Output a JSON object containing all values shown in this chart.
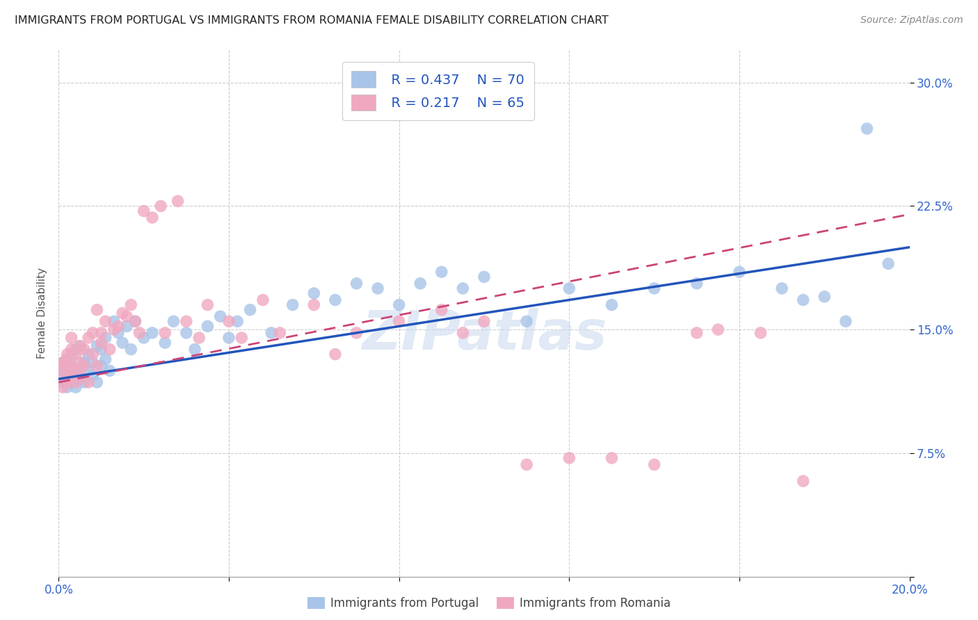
{
  "title": "IMMIGRANTS FROM PORTUGAL VS IMMIGRANTS FROM ROMANIA FEMALE DISABILITY CORRELATION CHART",
  "source": "Source: ZipAtlas.com",
  "ylabel": "Female Disability",
  "xlim": [
    0.0,
    0.2
  ],
  "ylim": [
    0.0,
    0.32
  ],
  "xticks": [
    0.0,
    0.04,
    0.08,
    0.12,
    0.16,
    0.2
  ],
  "xticklabels": [
    "0.0%",
    "",
    "",
    "",
    "",
    "20.0%"
  ],
  "yticks": [
    0.0,
    0.075,
    0.15,
    0.225,
    0.3
  ],
  "yticklabels": [
    "",
    "7.5%",
    "15.0%",
    "22.5%",
    "30.0%"
  ],
  "legend_r1": "R = 0.437",
  "legend_n1": "N = 70",
  "legend_r2": "R = 0.217",
  "legend_n2": "N = 65",
  "color_portugal": "#a8c4e8",
  "color_romania": "#f0a8c0",
  "color_line_portugal": "#2255bb",
  "color_line_romania": "#cc4477",
  "background_color": "#ffffff",
  "watermark": "ZIPatlas",
  "port_line_x0": 0.0,
  "port_line_y0": 0.12,
  "port_line_x1": 0.2,
  "port_line_y1": 0.2,
  "rom_line_x0": 0.0,
  "rom_line_y0": 0.118,
  "rom_line_x1": 0.2,
  "rom_line_y1": 0.22,
  "portugal_x": [
    0.001,
    0.001,
    0.001,
    0.002,
    0.002,
    0.002,
    0.002,
    0.003,
    0.003,
    0.003,
    0.003,
    0.004,
    0.004,
    0.004,
    0.005,
    0.005,
    0.005,
    0.006,
    0.006,
    0.007,
    0.007,
    0.008,
    0.008,
    0.009,
    0.009,
    0.01,
    0.01,
    0.011,
    0.011,
    0.012,
    0.013,
    0.014,
    0.015,
    0.016,
    0.017,
    0.018,
    0.02,
    0.022,
    0.025,
    0.027,
    0.03,
    0.032,
    0.035,
    0.038,
    0.04,
    0.042,
    0.045,
    0.05,
    0.055,
    0.06,
    0.065,
    0.07,
    0.075,
    0.08,
    0.085,
    0.09,
    0.095,
    0.1,
    0.11,
    0.12,
    0.13,
    0.14,
    0.15,
    0.16,
    0.17,
    0.175,
    0.18,
    0.185,
    0.19,
    0.195
  ],
  "portugal_y": [
    0.125,
    0.13,
    0.118,
    0.132,
    0.122,
    0.115,
    0.128,
    0.118,
    0.125,
    0.135,
    0.128,
    0.122,
    0.138,
    0.115,
    0.12,
    0.14,
    0.125,
    0.13,
    0.118,
    0.125,
    0.135,
    0.122,
    0.13,
    0.14,
    0.118,
    0.128,
    0.138,
    0.132,
    0.145,
    0.125,
    0.155,
    0.148,
    0.142,
    0.152,
    0.138,
    0.155,
    0.145,
    0.148,
    0.142,
    0.155,
    0.148,
    0.138,
    0.152,
    0.158,
    0.145,
    0.155,
    0.162,
    0.148,
    0.165,
    0.172,
    0.168,
    0.178,
    0.175,
    0.165,
    0.178,
    0.185,
    0.175,
    0.182,
    0.155,
    0.175,
    0.165,
    0.175,
    0.178,
    0.185,
    0.175,
    0.168,
    0.17,
    0.155,
    0.272,
    0.19
  ],
  "romania_x": [
    0.001,
    0.001,
    0.001,
    0.001,
    0.002,
    0.002,
    0.002,
    0.002,
    0.003,
    0.003,
    0.003,
    0.003,
    0.004,
    0.004,
    0.004,
    0.005,
    0.005,
    0.005,
    0.006,
    0.006,
    0.007,
    0.007,
    0.008,
    0.008,
    0.009,
    0.009,
    0.01,
    0.01,
    0.011,
    0.012,
    0.013,
    0.014,
    0.015,
    0.016,
    0.017,
    0.018,
    0.019,
    0.02,
    0.022,
    0.024,
    0.025,
    0.028,
    0.03,
    0.033,
    0.035,
    0.04,
    0.043,
    0.048,
    0.052,
    0.06,
    0.065,
    0.07,
    0.08,
    0.09,
    0.095,
    0.1,
    0.11,
    0.12,
    0.13,
    0.14,
    0.15,
    0.155,
    0.165,
    0.108,
    0.175
  ],
  "romania_y": [
    0.13,
    0.122,
    0.115,
    0.128,
    0.135,
    0.118,
    0.132,
    0.125,
    0.12,
    0.138,
    0.128,
    0.145,
    0.118,
    0.135,
    0.125,
    0.14,
    0.13,
    0.122,
    0.138,
    0.128,
    0.145,
    0.118,
    0.135,
    0.148,
    0.128,
    0.162,
    0.142,
    0.148,
    0.155,
    0.138,
    0.15,
    0.152,
    0.16,
    0.158,
    0.165,
    0.155,
    0.148,
    0.222,
    0.218,
    0.225,
    0.148,
    0.228,
    0.155,
    0.145,
    0.165,
    0.155,
    0.145,
    0.168,
    0.148,
    0.165,
    0.135,
    0.148,
    0.155,
    0.162,
    0.148,
    0.155,
    0.068,
    0.072,
    0.072,
    0.068,
    0.148,
    0.15,
    0.148,
    0.302,
    0.058
  ]
}
